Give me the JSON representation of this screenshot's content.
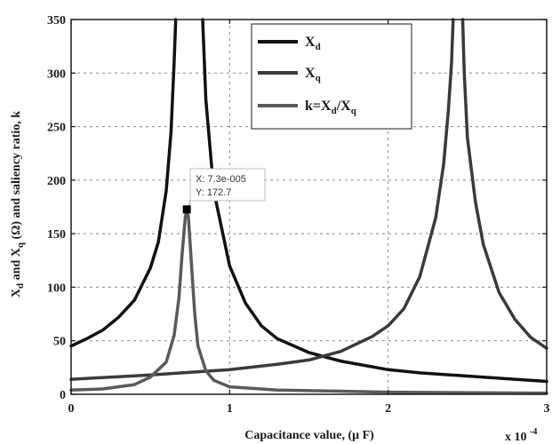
{
  "chart_data": {
    "type": "line",
    "xlabel": "Capacitance value, (μ F)",
    "ylabel": "X_d and X_q (Ω) and saliency ratio, k",
    "x_multiplier_label": "x 10",
    "x_multiplier_exponent": "-4",
    "xlim": [
      0,
      0.0003
    ],
    "ylim": [
      0,
      350
    ],
    "x_ticks": [
      0,
      0.0001,
      0.0002,
      0.0003
    ],
    "x_tick_labels": [
      "0",
      "1",
      "2",
      "3"
    ],
    "y_ticks": [
      0,
      50,
      100,
      150,
      200,
      250,
      300,
      350
    ],
    "y_tick_labels": [
      "0",
      "50",
      "100",
      "150",
      "200",
      "250",
      "300",
      "350"
    ],
    "grid": true,
    "legend_position": "top-center",
    "series": [
      {
        "name": "X_d",
        "color": "#111111",
        "segments": [
          [
            [
              0,
              45
            ],
            [
              1e-05,
              52
            ],
            [
              2e-05,
              60
            ],
            [
              3e-05,
              72
            ],
            [
              4e-05,
              88
            ],
            [
              5e-05,
              118
            ],
            [
              5.5e-05,
              142
            ],
            [
              6e-05,
              190
            ],
            [
              6.3e-05,
              245
            ],
            [
              6.5e-05,
              310
            ],
            [
              6.6e-05,
              350
            ]
          ],
          [
            [
              8.3e-05,
              350
            ],
            [
              8.5e-05,
              275
            ],
            [
              9e-05,
              190
            ],
            [
              0.0001,
              120
            ],
            [
              0.00011,
              85
            ],
            [
              0.00012,
              64
            ],
            [
              0.00013,
              52
            ],
            [
              0.00015,
              39
            ],
            [
              0.00017,
              31
            ],
            [
              0.0002,
              23
            ],
            [
              0.00022,
              20
            ],
            [
              0.00025,
              17
            ],
            [
              0.00028,
              14
            ],
            [
              0.0003,
              12
            ]
          ]
        ]
      },
      {
        "name": "X_q",
        "color": "#3a3a3a",
        "segments": [
          [
            [
              0,
              14
            ],
            [
              5e-05,
              18
            ],
            [
              0.0001,
              23
            ],
            [
              0.00013,
              28
            ],
            [
              0.00015,
              32
            ],
            [
              0.00017,
              40
            ],
            [
              0.00019,
              54
            ],
            [
              0.0002,
              64
            ],
            [
              0.00021,
              80
            ],
            [
              0.00022,
              110
            ],
            [
              0.00023,
              165
            ],
            [
              0.000235,
              215
            ],
            [
              0.000238,
              265
            ],
            [
              0.00024,
              310
            ],
            [
              0.000241,
              350
            ]
          ],
          [
            [
              0.000247,
              350
            ],
            [
              0.000248,
              300
            ],
            [
              0.00025,
              240
            ],
            [
              0.000255,
              180
            ],
            [
              0.00026,
              140
            ],
            [
              0.00027,
              95
            ],
            [
              0.00028,
              70
            ],
            [
              0.00029,
              53
            ],
            [
              0.0003,
              43
            ]
          ]
        ]
      },
      {
        "name": "k=X_d/X_q",
        "color": "#5a5a5a",
        "segments": [
          [
            [
              0,
              4
            ],
            [
              2e-05,
              5
            ],
            [
              4e-05,
              9
            ],
            [
              5e-05,
              16
            ],
            [
              6e-05,
              30
            ],
            [
              6.5e-05,
              55
            ],
            [
              6.8e-05,
              90
            ],
            [
              7e-05,
              130
            ],
            [
              7.2e-05,
              165
            ],
            [
              7.3e-05,
              172.7
            ],
            [
              7.4e-05,
              165
            ],
            [
              7.6e-05,
              120
            ],
            [
              7.8e-05,
              75
            ],
            [
              8e-05,
              45
            ],
            [
              8.5e-05,
              22
            ],
            [
              9e-05,
              13
            ],
            [
              0.0001,
              7
            ],
            [
              0.00013,
              4
            ],
            [
              0.0002,
              2
            ],
            [
              0.0003,
              1
            ]
          ]
        ]
      }
    ],
    "datatip": {
      "x": 7.3e-05,
      "y": 172.7,
      "x_text": "X: 7.3e-005",
      "y_text": "Y: 172.7"
    }
  }
}
